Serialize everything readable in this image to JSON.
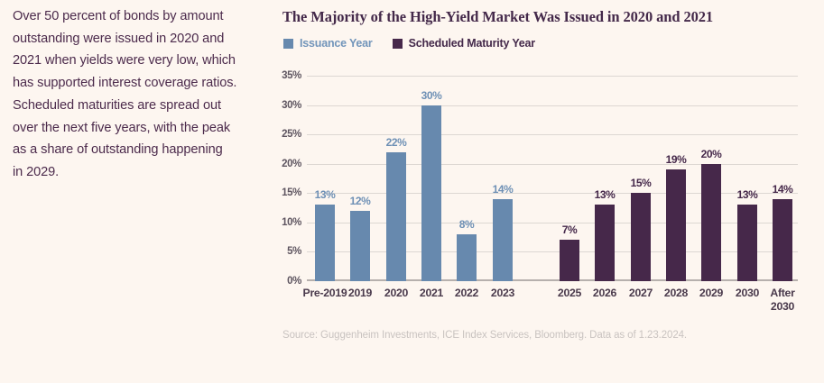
{
  "commentary": {
    "paragraph": "Over 50 percent of bonds by amount\noutstanding were issued in 2020 and\n2021 when yields were very low, which\nhas supported interest coverage ratios.\nScheduled maturities are spread out\nover the next five years, with the peak\nas a share of outstanding happening\nin 2029."
  },
  "chart": {
    "title": "The Majority of the High-Yield Market Was Issued in 2020 and 2021",
    "legend": [
      {
        "label": "Issuance Year",
        "color": "#6789ae",
        "text_color": "#7295ba"
      },
      {
        "label": "Scheduled Maturity Year",
        "color": "#46284a",
        "text_color": "#44294a"
      }
    ],
    "source": "Source: Guggenheim Investments, ICE Index Services, Bloomberg. Data as of 1.23.2024."
  },
  "chart_data": {
    "type": "bar",
    "title": "The Majority of the High-Yield Market Was Issued in 2020 and 2021",
    "xlabel": "",
    "ylabel": "",
    "ylim": [
      0,
      35
    ],
    "yticks": [
      0,
      5,
      10,
      15,
      20,
      25,
      30,
      35
    ],
    "ytick_suffix": "%",
    "grid": true,
    "legend_position": "top-left",
    "data_labels": true,
    "series": [
      {
        "name": "Issuance Year",
        "color": "#6789ae",
        "label_color": "#6e90b5",
        "points": [
          {
            "category": "Pre-2019",
            "value": 13,
            "label": "13%"
          },
          {
            "category": "2019",
            "value": 12,
            "label": "12%"
          },
          {
            "category": "2020",
            "value": 22,
            "label": "22%"
          },
          {
            "category": "2021",
            "value": 30,
            "label": "30%"
          },
          {
            "category": "2022",
            "value": 8,
            "label": "8%"
          },
          {
            "category": "2023",
            "value": 14,
            "label": "14%"
          }
        ]
      },
      {
        "name": "Scheduled Maturity Year",
        "color": "#46284a",
        "label_color": "#45284a",
        "points": [
          {
            "category": "2025",
            "value": 7,
            "label": "7%"
          },
          {
            "category": "2026",
            "value": 13,
            "label": "13%"
          },
          {
            "category": "2027",
            "value": 15,
            "label": "15%"
          },
          {
            "category": "2028",
            "value": 19,
            "label": "19%"
          },
          {
            "category": "2029",
            "value": 20,
            "label": "20%"
          },
          {
            "category": "2030",
            "value": 13,
            "label": "13%"
          },
          {
            "category": "After 2030",
            "value": 14,
            "label": "14%"
          }
        ]
      }
    ],
    "colors": {
      "background": "#fdf6f0",
      "gridline": "#ddd7d2",
      "axis_line": "#b6b0ad",
      "tick_label": "#5e5560"
    }
  }
}
